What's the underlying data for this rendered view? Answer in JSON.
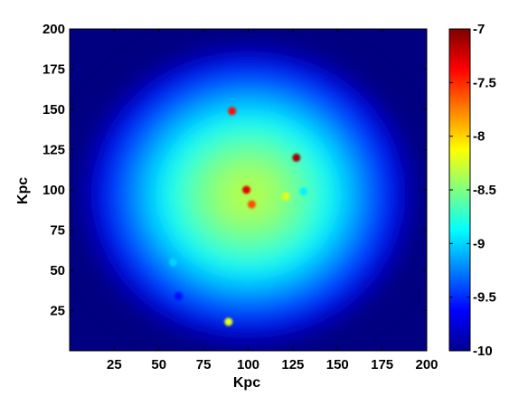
{
  "chart_data": {
    "type": "heatmap",
    "title": "",
    "xlabel": "Kpc",
    "ylabel": "Kpc",
    "xlim": [
      0,
      200
    ],
    "ylim": [
      0,
      200
    ],
    "x_ticks": [
      "25",
      "50",
      "75",
      "100",
      "125",
      "150",
      "175",
      "200"
    ],
    "x_tick_values": [
      25,
      50,
      75,
      100,
      125,
      150,
      175,
      200
    ],
    "y_ticks": [
      "25",
      "50",
      "75",
      "100",
      "125",
      "150",
      "175",
      "200"
    ],
    "y_tick_values": [
      25,
      50,
      75,
      100,
      125,
      150,
      175,
      200
    ],
    "colorbar": {
      "range": [
        -10,
        -7
      ],
      "ticks": [
        "-7",
        "-7.5",
        "-8",
        "-8.5",
        "-9",
        "-9.5",
        "-10"
      ],
      "tick_values": [
        -7,
        -7.5,
        -8,
        -8.5,
        -9,
        -9.5,
        -10
      ],
      "colormap": "jet"
    },
    "field": {
      "background_value": -10.0,
      "center": [
        100,
        97
      ],
      "center_value": -8.3,
      "radius": 97
    },
    "hotspots": [
      {
        "x": 91,
        "y": 149,
        "value": -7.4
      },
      {
        "x": 127,
        "y": 120,
        "value": -7.1
      },
      {
        "x": 99,
        "y": 100,
        "value": -7.3
      },
      {
        "x": 102,
        "y": 91,
        "value": -7.6
      },
      {
        "x": 121,
        "y": 96,
        "value": -8.2
      },
      {
        "x": 131,
        "y": 99,
        "value": -8.9
      },
      {
        "x": 89,
        "y": 18,
        "value": -8.2
      },
      {
        "x": 61,
        "y": 34,
        "value": -9.6
      },
      {
        "x": 58,
        "y": 55,
        "value": -9.0
      }
    ]
  }
}
